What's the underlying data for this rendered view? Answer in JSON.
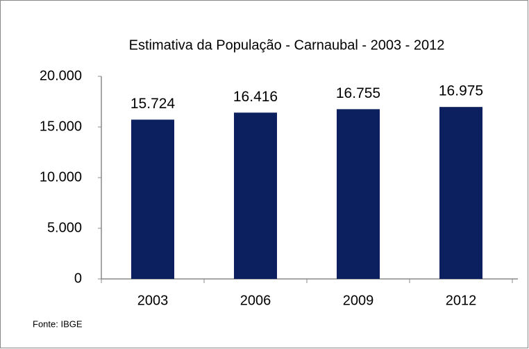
{
  "chart_data": {
    "type": "bar",
    "title": "Estimativa da População - Carnaubal - 2003 - 2012",
    "categories": [
      "2003",
      "2006",
      "2009",
      "2012"
    ],
    "values": [
      15724,
      16416,
      16755,
      16975
    ],
    "value_labels": [
      "15.724",
      "16.416",
      "16.755",
      "16.975"
    ],
    "color": "#0c1f5e",
    "ylim": [
      0,
      20000
    ],
    "yticks": [
      0,
      {
        "value": 5000,
        "label": "5.000"
      },
      {
        "value": 10000,
        "label": "10.000"
      },
      {
        "value": 15000,
        "label": "15.000"
      },
      {
        "value": 20000,
        "label": "20.000"
      }
    ],
    "source": "Fonte: IBGE"
  }
}
